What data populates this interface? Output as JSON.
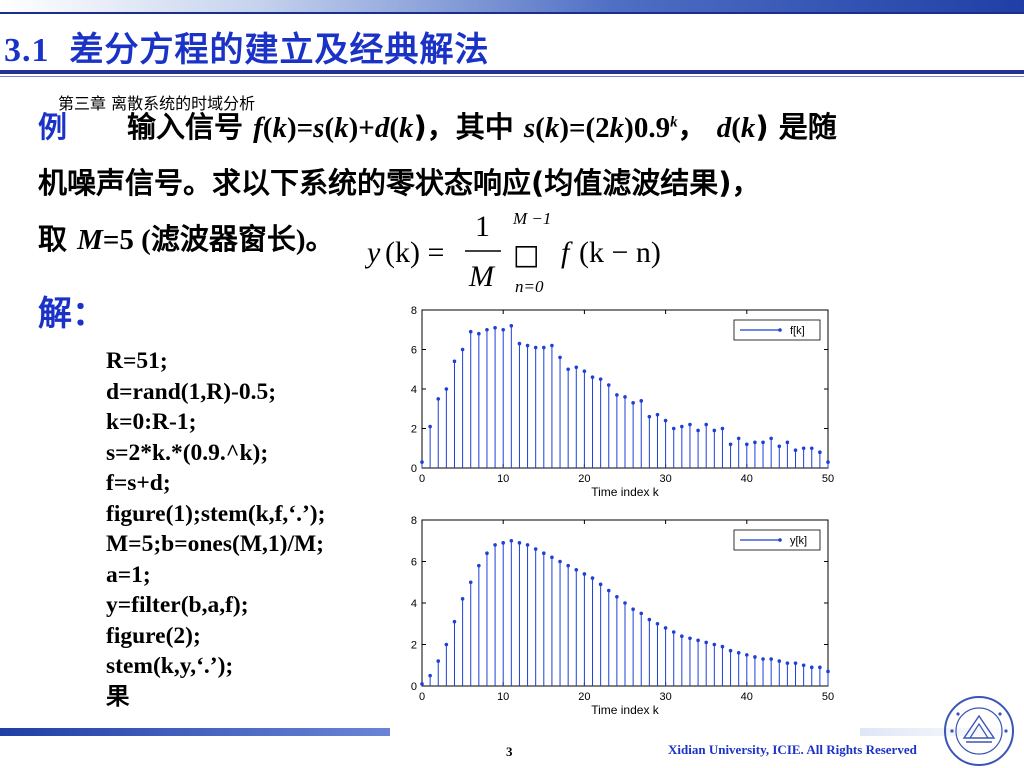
{
  "title": {
    "number": "3.1",
    "text": "差分方程的建立及经典解法"
  },
  "chapter_label": "第三章 离散系统的时域分析",
  "problem": {
    "label": "例",
    "line1_a": "输入信号 ",
    "line1_f": "f",
    "line1_b": "(",
    "line1_k1": "k",
    "line1_c": ")=",
    "line1_s": "s",
    "line1_d": "(",
    "line1_k2": "k",
    "line1_e": ")+",
    "line1_dd": "d",
    "line1_g": "(",
    "line1_k3": "k",
    "line1_h": ")，其中 ",
    "line1_s2": "s",
    "line1_i": "(",
    "line1_k4": "k",
    "line1_j": ")=(2",
    "line1_k5": "k",
    "line1_l": ")0.9",
    "line1_sup": "k",
    "line1_m": "， ",
    "line1_d2": "d",
    "line1_n": "(",
    "line1_k6": "k",
    "line1_o": ") 是随",
    "line2": "机噪声信号。求以下系统的零状态响应(均值滤波结果)，",
    "line3_a": "取 ",
    "line3_M": "M",
    "line3_b": "=5 (滤波器窗长)。"
  },
  "formula": {
    "lhs_y": "y",
    "lhs_k": "(k) =",
    "num": "1",
    "den": "M",
    "sum_upper": "M −1",
    "sum_lower": "n=0",
    "sum_glyph": "□",
    "rhs_f": "f",
    "rhs_arg": "(k − n)"
  },
  "solution_label": "解：",
  "code_lines": [
    "R=51;",
    "d=rand(1,R)-0.5;",
    "k=0:R-1;",
    "s=2*k.*(0.9.^k);",
    "f=s+d;",
    "figure(1);stem(k,f,‘.’);",
    "M=5;b=ones(M,1)/M;",
    "a=1;",
    "y=filter(b,a,f);",
    "figure(2);",
    "stem(k,y,‘.’);",
    "果"
  ],
  "footer": {
    "page": "3",
    "copyright": "Xidian University, ICIE. All Rights Reserved"
  },
  "colors": {
    "title": "#1b32c7",
    "stem": "#1f3fd6",
    "rule": "#23338f"
  },
  "chart_data": [
    {
      "type": "stem",
      "title": "",
      "xlabel": "Time index k",
      "ylabel": "",
      "xlim": [
        0,
        50
      ],
      "ylim": [
        0,
        8
      ],
      "xticks": [
        "0",
        "10",
        "20",
        "30",
        "40",
        "50"
      ],
      "yticks": [
        "0",
        "2",
        "4",
        "6",
        "8"
      ],
      "legend": "top-right",
      "series": [
        {
          "name": "f[k]",
          "x": [
            0,
            1,
            2,
            3,
            4,
            5,
            6,
            7,
            8,
            9,
            10,
            11,
            12,
            13,
            14,
            15,
            16,
            17,
            18,
            19,
            20,
            21,
            22,
            23,
            24,
            25,
            26,
            27,
            28,
            29,
            30,
            31,
            32,
            33,
            34,
            35,
            36,
            37,
            38,
            39,
            40,
            41,
            42,
            43,
            44,
            45,
            46,
            47,
            48,
            49,
            50
          ],
          "y": [
            0.3,
            2.1,
            3.5,
            4.0,
            5.4,
            6.0,
            6.9,
            6.8,
            7.0,
            7.1,
            7.0,
            7.2,
            6.3,
            6.2,
            6.1,
            6.1,
            6.2,
            5.6,
            5.0,
            5.1,
            4.9,
            4.6,
            4.5,
            4.2,
            3.7,
            3.6,
            3.3,
            3.4,
            2.6,
            2.7,
            2.4,
            2.0,
            2.1,
            2.2,
            1.9,
            2.2,
            1.9,
            2.0,
            1.2,
            1.5,
            1.2,
            1.3,
            1.3,
            1.5,
            1.1,
            1.3,
            0.9,
            1.0,
            1.0,
            0.8,
            0.3
          ]
        }
      ]
    },
    {
      "type": "stem",
      "title": "",
      "xlabel": "Time index k",
      "ylabel": "",
      "xlim": [
        0,
        50
      ],
      "ylim": [
        0,
        8
      ],
      "xticks": [
        "0",
        "10",
        "20",
        "30",
        "40",
        "50"
      ],
      "yticks": [
        "0",
        "2",
        "4",
        "6",
        "8"
      ],
      "legend": "top-right",
      "series": [
        {
          "name": "y[k]",
          "x": [
            0,
            1,
            2,
            3,
            4,
            5,
            6,
            7,
            8,
            9,
            10,
            11,
            12,
            13,
            14,
            15,
            16,
            17,
            18,
            19,
            20,
            21,
            22,
            23,
            24,
            25,
            26,
            27,
            28,
            29,
            30,
            31,
            32,
            33,
            34,
            35,
            36,
            37,
            38,
            39,
            40,
            41,
            42,
            43,
            44,
            45,
            46,
            47,
            48,
            49,
            50
          ],
          "y": [
            0.1,
            0.5,
            1.2,
            2.0,
            3.1,
            4.2,
            5.0,
            5.8,
            6.4,
            6.8,
            6.9,
            7.0,
            6.9,
            6.8,
            6.6,
            6.4,
            6.2,
            6.0,
            5.8,
            5.6,
            5.4,
            5.2,
            4.9,
            4.6,
            4.3,
            4.0,
            3.7,
            3.5,
            3.2,
            3.0,
            2.8,
            2.6,
            2.4,
            2.3,
            2.2,
            2.1,
            2.0,
            1.9,
            1.7,
            1.6,
            1.5,
            1.4,
            1.3,
            1.3,
            1.2,
            1.1,
            1.1,
            1.0,
            0.9,
            0.9,
            0.7
          ]
        }
      ]
    }
  ]
}
